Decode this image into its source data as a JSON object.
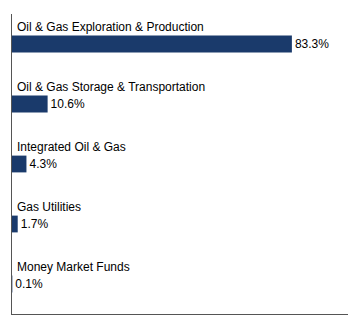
{
  "chart_data": {
    "type": "bar",
    "orientation": "horizontal",
    "categories": [
      "Oil & Gas Exploration & Production",
      "Oil & Gas Storage & Transportation",
      "Integrated Oil & Gas",
      "Gas Utilities",
      "Money Market Funds"
    ],
    "values": [
      83.3,
      10.6,
      4.3,
      1.7,
      0.1
    ],
    "value_labels": [
      "83.3%",
      "10.6%",
      "4.3%",
      "1.7%",
      "0.1%"
    ],
    "data_labels": true,
    "color": "#1a3a6b",
    "xlim": [
      0,
      100
    ],
    "grid": false,
    "tick_labels": false
  }
}
